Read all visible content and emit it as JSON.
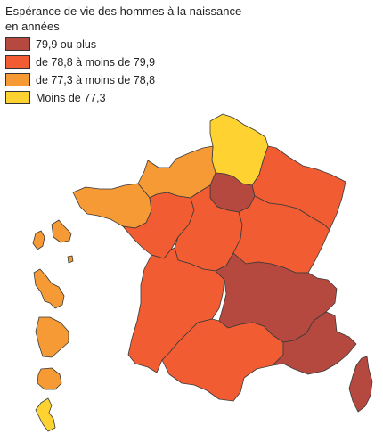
{
  "title": "Espérance de vie des hommes à la naissance",
  "subtitle": "en années",
  "colors": {
    "class_1": "#b5493f",
    "class_2": "#f15c32",
    "class_3": "#f59a35",
    "class_4": "#fed230"
  },
  "legend": [
    {
      "label": "79,9 ou plus",
      "class": "class_1"
    },
    {
      "label": "de 78,8 à moins de 79,9",
      "class": "class_2"
    },
    {
      "label": "de 77,3 à moins de 78,8",
      "class": "class_3"
    },
    {
      "label": "Moins de 77,3",
      "class": "class_4"
    }
  ],
  "regions": [
    {
      "id": "hauts-de-france",
      "class": "class_4"
    },
    {
      "id": "normandie",
      "class": "class_3"
    },
    {
      "id": "bretagne",
      "class": "class_3"
    },
    {
      "id": "ile-de-france",
      "class": "class_1"
    },
    {
      "id": "grand-est",
      "class": "class_2"
    },
    {
      "id": "pays-de-la-loire",
      "class": "class_2"
    },
    {
      "id": "centre-val-de-loire",
      "class": "class_2"
    },
    {
      "id": "bourgogne-franche-comte",
      "class": "class_2"
    },
    {
      "id": "nouvelle-aquitaine",
      "class": "class_2"
    },
    {
      "id": "auvergne-rhone-alpes",
      "class": "class_1"
    },
    {
      "id": "occitanie",
      "class": "class_2"
    },
    {
      "id": "provence-alpes-cote-d-azur",
      "class": "class_1"
    },
    {
      "id": "corse",
      "class": "class_1"
    },
    {
      "id": "guadeloupe",
      "class": "class_3"
    },
    {
      "id": "martinique",
      "class": "class_3"
    },
    {
      "id": "guyane",
      "class": "class_3"
    },
    {
      "id": "la-reunion",
      "class": "class_3"
    },
    {
      "id": "mayotte",
      "class": "class_4"
    }
  ]
}
